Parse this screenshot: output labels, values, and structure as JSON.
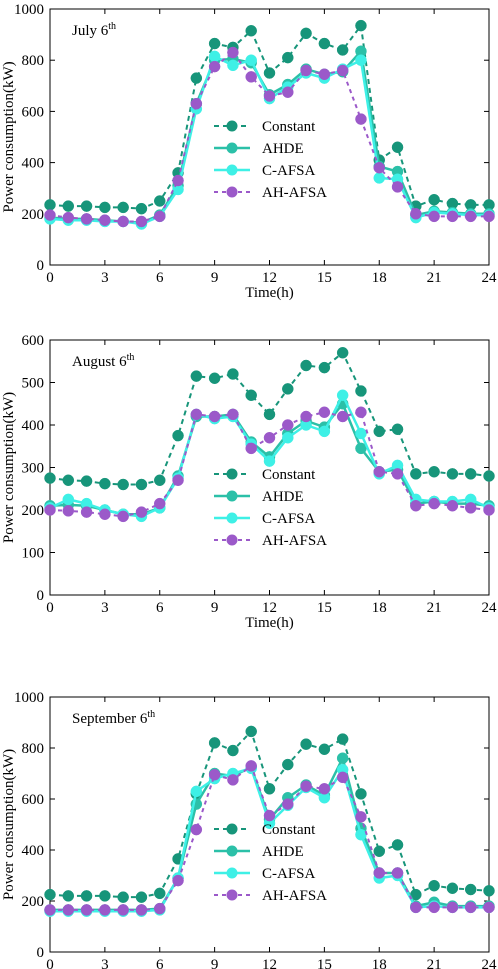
{
  "colors": {
    "Constant": "#17957A",
    "AHDE": "#2BC0A8",
    "C-AFSA": "#3EF0E6",
    "AH-AFSA": "#9B59C9"
  },
  "chart_data": [
    {
      "type": "line",
      "title": "July 6",
      "title_sup": "th",
      "xlabel": "Time(h)",
      "ylabel": "Power consumption(kW)",
      "xlim": [
        0,
        24
      ],
      "ylim": [
        0,
        1000
      ],
      "xticks": [
        0,
        3,
        6,
        9,
        12,
        15,
        18,
        21,
        24
      ],
      "yticks": [
        0,
        200,
        400,
        600,
        800,
        1000
      ],
      "legend": {
        "position": "center",
        "entries": [
          "Constant",
          "AHDE",
          "C-AFSA",
          "AH-AFSA"
        ]
      },
      "x": [
        0,
        1,
        2,
        3,
        4,
        5,
        6,
        7,
        8,
        9,
        10,
        11,
        12,
        13,
        14,
        15,
        16,
        17,
        18,
        19,
        20,
        21,
        22,
        23,
        24
      ],
      "series": [
        {
          "name": "Constant",
          "style": "dashed",
          "values": [
            235,
            230,
            230,
            225,
            225,
            220,
            250,
            360,
            730,
            865,
            850,
            915,
            750,
            810,
            905,
            865,
            840,
            935,
            410,
            460,
            230,
            255,
            240,
            235,
            235
          ]
        },
        {
          "name": "AHDE",
          "style": "solid",
          "values": [
            185,
            180,
            180,
            175,
            170,
            165,
            195,
            310,
            630,
            800,
            805,
            790,
            665,
            705,
            765,
            745,
            755,
            835,
            385,
            365,
            195,
            210,
            205,
            200,
            200
          ]
        },
        {
          "name": "C-AFSA",
          "style": "solid",
          "values": [
            180,
            175,
            175,
            170,
            170,
            160,
            190,
            295,
            610,
            815,
            780,
            800,
            650,
            695,
            750,
            730,
            765,
            800,
            340,
            335,
            185,
            205,
            200,
            195,
            195
          ]
        },
        {
          "name": "AH-AFSA",
          "style": "dashed",
          "values": [
            195,
            185,
            180,
            175,
            170,
            170,
            190,
            330,
            630,
            775,
            830,
            735,
            660,
            675,
            760,
            745,
            760,
            570,
            380,
            305,
            200,
            190,
            190,
            190,
            190
          ]
        }
      ]
    },
    {
      "type": "line",
      "title": "August 6",
      "title_sup": "th",
      "xlabel": "Time(h)",
      "ylabel": "Power consumption(kW)",
      "xlim": [
        0,
        24
      ],
      "ylim": [
        0,
        600
      ],
      "xticks": [
        0,
        3,
        6,
        9,
        12,
        15,
        18,
        21,
        24
      ],
      "yticks": [
        0,
        100,
        200,
        300,
        400,
        500,
        600
      ],
      "legend": {
        "position": "center",
        "entries": [
          "Constant",
          "AHDE",
          "C-AFSA",
          "AH-AFSA"
        ]
      },
      "x": [
        0,
        1,
        2,
        3,
        4,
        5,
        6,
        7,
        8,
        9,
        10,
        11,
        12,
        13,
        14,
        15,
        16,
        17,
        18,
        19,
        20,
        21,
        22,
        23,
        24
      ],
      "series": [
        {
          "name": "Constant",
          "style": "dashed",
          "values": [
            275,
            270,
            268,
            262,
            260,
            260,
            270,
            375,
            515,
            510,
            520,
            470,
            425,
            485,
            540,
            535,
            570,
            480,
            385,
            390,
            285,
            290,
            285,
            285,
            280
          ]
        },
        {
          "name": "AHDE",
          "style": "solid",
          "values": [
            210,
            212,
            210,
            200,
            190,
            190,
            205,
            280,
            420,
            420,
            425,
            360,
            325,
            380,
            410,
            395,
            450,
            345,
            290,
            295,
            215,
            220,
            215,
            215,
            210
          ]
        },
        {
          "name": "C-AFSA",
          "style": "solid",
          "values": [
            205,
            225,
            215,
            200,
            190,
            185,
            205,
            275,
            425,
            415,
            420,
            355,
            315,
            370,
            400,
            385,
            470,
            380,
            285,
            305,
            225,
            220,
            220,
            225,
            205
          ]
        },
        {
          "name": "AH-AFSA",
          "style": "dashed",
          "values": [
            200,
            198,
            195,
            190,
            185,
            195,
            215,
            270,
            425,
            420,
            425,
            345,
            370,
            400,
            420,
            430,
            420,
            430,
            290,
            285,
            210,
            215,
            210,
            205,
            200
          ]
        }
      ]
    },
    {
      "type": "line",
      "title": "September 6",
      "title_sup": "th",
      "xlabel": "Time(h)",
      "ylabel": "Power consumption(kW)",
      "xlim": [
        0,
        24
      ],
      "ylim": [
        0,
        1000
      ],
      "xticks": [
        0,
        3,
        6,
        9,
        12,
        15,
        18,
        21,
        24
      ],
      "yticks": [
        0,
        200,
        400,
        600,
        800,
        1000
      ],
      "legend": {
        "position": "center",
        "entries": [
          "Constant",
          "AHDE",
          "C-AFSA",
          "AH-AFSA"
        ]
      },
      "x": [
        0,
        1,
        2,
        3,
        4,
        5,
        6,
        7,
        8,
        9,
        10,
        11,
        12,
        13,
        14,
        15,
        16,
        17,
        18,
        19,
        20,
        21,
        22,
        23,
        24
      ],
      "series": [
        {
          "name": "Constant",
          "style": "dashed",
          "values": [
            225,
            220,
            220,
            220,
            215,
            215,
            230,
            365,
            620,
            820,
            790,
            865,
            640,
            735,
            815,
            795,
            835,
            620,
            395,
            420,
            225,
            260,
            250,
            245,
            240
          ]
        },
        {
          "name": "AHDE",
          "style": "solid",
          "values": [
            165,
            165,
            165,
            165,
            165,
            165,
            170,
            290,
            580,
            700,
            690,
            725,
            520,
            605,
            655,
            615,
            760,
            485,
            310,
            310,
            180,
            195,
            180,
            180,
            180
          ]
        },
        {
          "name": "C-AFSA",
          "style": "solid",
          "values": [
            160,
            160,
            160,
            160,
            160,
            160,
            165,
            290,
            630,
            680,
            700,
            720,
            505,
            575,
            645,
            605,
            715,
            460,
            290,
            300,
            175,
            180,
            175,
            175,
            175
          ]
        },
        {
          "name": "AH-AFSA",
          "style": "dashed",
          "values": [
            165,
            165,
            165,
            165,
            165,
            165,
            170,
            280,
            480,
            695,
            675,
            730,
            535,
            580,
            650,
            640,
            685,
            530,
            310,
            310,
            175,
            175,
            175,
            175,
            175
          ]
        }
      ]
    }
  ]
}
